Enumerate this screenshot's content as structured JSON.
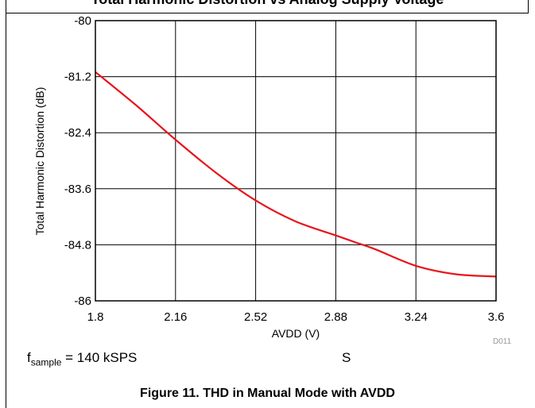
{
  "header": {
    "cut_title": "Total Harmonic Distortion vs Analog Supply Voltage"
  },
  "chart_data": {
    "type": "line",
    "title": "",
    "xlabel": "AVDD (V)",
    "ylabel": "Total Harmonic Distortion (dB)",
    "xlim": [
      1.8,
      3.6
    ],
    "ylim": [
      -86,
      -80
    ],
    "xticks": [
      "1.8",
      "2.16",
      "2.52",
      "2.88",
      "3.24",
      "3.6"
    ],
    "yticks": [
      "-80",
      "-81.2",
      "-82.4",
      "-83.6",
      "-84.8",
      "-86"
    ],
    "grid": true,
    "series": [
      {
        "color": "#e8141c",
        "x": [
          1.8,
          1.98,
          2.16,
          2.34,
          2.52,
          2.7,
          2.88,
          2.97,
          3.06,
          3.24,
          3.42,
          3.6
        ],
        "y": [
          -81.1,
          -81.8,
          -82.55,
          -83.25,
          -83.85,
          -84.3,
          -84.6,
          -84.75,
          -84.9,
          -85.25,
          -85.43,
          -85.48
        ]
      }
    ]
  },
  "footer": {
    "note_prefix": "f",
    "note_sub": "sample",
    "note_rest": " = 140 kSPS",
    "trail": "S"
  },
  "code": "D011",
  "caption": "Figure 11. THD in Manual Mode with AVDD"
}
